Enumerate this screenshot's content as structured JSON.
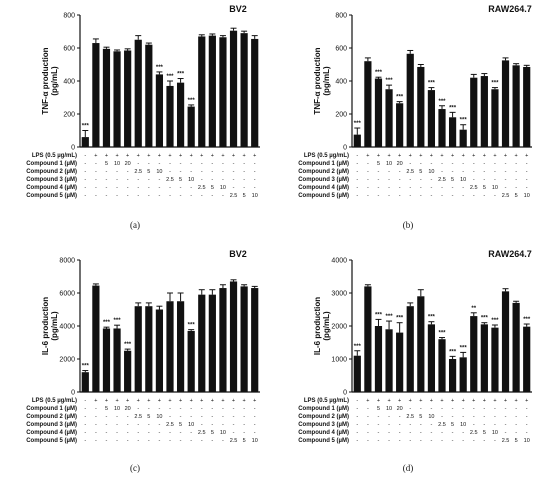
{
  "panels": [
    {
      "caption": "(a)",
      "chart_data": {
        "type": "bar",
        "title": "BV2",
        "ylabel": [
          "TNF-α production",
          "(pg/mL)"
        ],
        "ylim": [
          0,
          800
        ],
        "yticks": [
          "0",
          "200",
          "400",
          "600",
          "800"
        ],
        "ytick_values": [
          0,
          200,
          400,
          600,
          800
        ],
        "values": [
          60,
          630,
          595,
          580,
          585,
          650,
          620,
          440,
          370,
          390,
          245,
          670,
          675,
          665,
          705,
          690,
          655
        ],
        "errors": [
          40,
          25,
          10,
          8,
          10,
          25,
          10,
          15,
          30,
          25,
          10,
          10,
          10,
          10,
          15,
          12,
          20
        ],
        "significance": [
          "***",
          "",
          "",
          "",
          "",
          "",
          "",
          "***",
          "***",
          "***",
          "***",
          "",
          "",
          "",
          "",
          "",
          ""
        ]
      }
    },
    {
      "caption": "(b)",
      "chart_data": {
        "type": "bar",
        "title": "RAW264.7",
        "ylabel": [
          "TNF-α production",
          "(pg/mL)"
        ],
        "ylim": [
          0,
          800
        ],
        "yticks": [
          "0",
          "200",
          "400",
          "600",
          "800"
        ],
        "ytick_values": [
          0,
          200,
          400,
          600,
          800
        ],
        "values": [
          75,
          520,
          415,
          350,
          265,
          565,
          485,
          345,
          230,
          180,
          105,
          420,
          430,
          350,
          525,
          495,
          485
        ],
        "errors": [
          40,
          20,
          8,
          25,
          10,
          20,
          15,
          15,
          20,
          30,
          30,
          20,
          15,
          10,
          15,
          10,
          10
        ],
        "significance": [
          "***",
          "",
          "***",
          "***",
          "***",
          "",
          "",
          "***",
          "***",
          "***",
          "***",
          "",
          "",
          "***",
          "",
          "",
          ""
        ]
      }
    },
    {
      "caption": "(c)",
      "chart_data": {
        "type": "bar",
        "title": "BV2",
        "ylabel": [
          "IL-6 production",
          "(pg/mL)"
        ],
        "ylim": [
          0,
          8000
        ],
        "yticks": [
          "0",
          "2000",
          "4000",
          "6000",
          "8000"
        ],
        "ytick_values": [
          0,
          2000,
          4000,
          6000,
          8000
        ],
        "values": [
          1200,
          6450,
          3850,
          3850,
          2500,
          5200,
          5200,
          5000,
          5500,
          5500,
          3700,
          5900,
          5900,
          6300,
          6700,
          6400,
          6300
        ],
        "errors": [
          100,
          100,
          80,
          200,
          100,
          200,
          200,
          200,
          500,
          500,
          80,
          300,
          300,
          200,
          100,
          100,
          100
        ],
        "significance": [
          "***",
          "",
          "***",
          "***",
          "***",
          "",
          "",
          "",
          "",
          "",
          "***",
          "",
          "",
          "",
          "",
          "",
          ""
        ]
      }
    },
    {
      "caption": "(d)",
      "chart_data": {
        "type": "bar",
        "title": "RAW264.7",
        "ylabel": [
          "IL-6 production",
          "(pg/mL)"
        ],
        "ylim": [
          0,
          4000
        ],
        "yticks": [
          "0",
          "1000",
          "2000",
          "3000",
          "4000"
        ],
        "ytick_values": [
          0,
          1000,
          2000,
          3000,
          4000
        ],
        "values": [
          1100,
          3200,
          2000,
          1900,
          1800,
          2600,
          2900,
          2050,
          1600,
          1000,
          1050,
          2300,
          2050,
          1950,
          3050,
          2700,
          1980
        ],
        "errors": [
          150,
          50,
          200,
          250,
          300,
          100,
          200,
          80,
          50,
          80,
          150,
          100,
          50,
          80,
          80,
          50,
          80
        ],
        "significance": [
          "***",
          "",
          "***",
          "***",
          "***",
          "",
          "",
          "***",
          "***",
          "***",
          "***",
          "**",
          "***",
          "***",
          "",
          "",
          "***"
        ]
      }
    }
  ],
  "treatment_table": {
    "rows": [
      {
        "label": "LPS (0.5 µg/mL)",
        "cells": [
          "-",
          "+",
          "+",
          "+",
          "+",
          "+",
          "+",
          "+",
          "+",
          "+",
          "+",
          "+",
          "+",
          "+",
          "+",
          "+",
          "+"
        ]
      },
      {
        "label": "Compound 1 (µM)",
        "cells": [
          "-",
          "-",
          "5",
          "10",
          "20",
          "-",
          "-",
          "-",
          "-",
          "-",
          "-",
          "-",
          "-",
          "-",
          "-",
          "-",
          "-"
        ]
      },
      {
        "label": "Compound 2 (µM)",
        "cells": [
          "-",
          "-",
          "-",
          "-",
          "-",
          "2.5",
          "5",
          "10",
          "-",
          "-",
          "-",
          "-",
          "-",
          "-",
          "-",
          "-",
          "-"
        ]
      },
      {
        "label": "Compound 3 (µM)",
        "cells": [
          "-",
          "-",
          "-",
          "-",
          "-",
          "-",
          "-",
          "-",
          "2.5",
          "5",
          "10",
          "-",
          "-",
          "-",
          "-",
          "-",
          "-"
        ]
      },
      {
        "label": "Compound 4 (µM)",
        "cells": [
          "-",
          "-",
          "-",
          "-",
          "-",
          "-",
          "-",
          "-",
          "-",
          "-",
          "-",
          "2.5",
          "5",
          "10",
          "-",
          "-",
          "-"
        ]
      },
      {
        "label": "Compound 5 (µM)",
        "cells": [
          "-",
          "-",
          "-",
          "-",
          "-",
          "-",
          "-",
          "-",
          "-",
          "-",
          "-",
          "-",
          "-",
          "-",
          "2.5",
          "5",
          "10"
        ]
      }
    ]
  }
}
